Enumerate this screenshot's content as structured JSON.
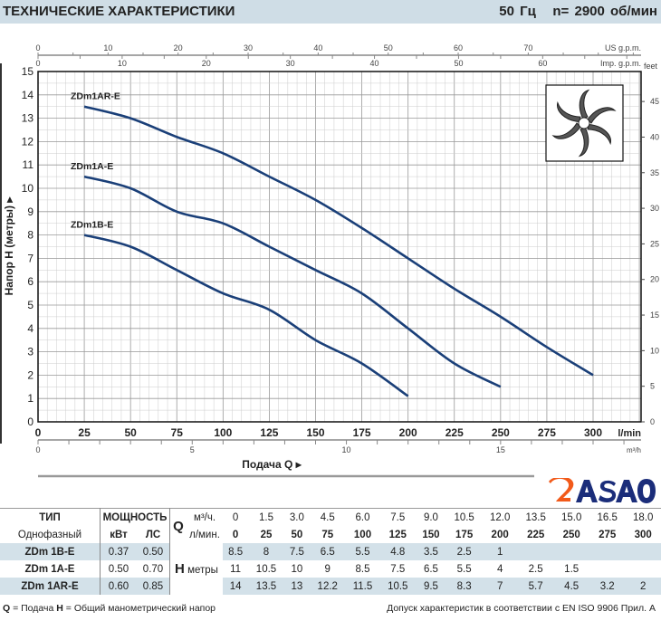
{
  "header": {
    "title": "ТЕХНИЧЕСКИЕ ХАРАКТЕРИСТИКИ",
    "freq": "50 Гц",
    "speed": "n= 2900 об/мин"
  },
  "chart_data": {
    "type": "line",
    "xlabel": "Подача Q",
    "ylabel": "Напор H (метры)",
    "x_unit": "l/min",
    "y2_unit": "feet",
    "x2_unit": "m³/h",
    "top1_unit": "US g.p.m.",
    "top2_unit": "Imp. g.p.m.",
    "xlim": [
      0,
      326
    ],
    "ylim": [
      0,
      15
    ],
    "x_ticks": [
      0,
      25,
      50,
      75,
      100,
      125,
      150,
      175,
      200,
      225,
      250,
      275,
      300
    ],
    "y_ticks": [
      0,
      1,
      2,
      3,
      4,
      5,
      6,
      7,
      8,
      9,
      10,
      11,
      12,
      13,
      14,
      15
    ],
    "feet_ticks": [
      0,
      5,
      10,
      15,
      20,
      25,
      30,
      35,
      40,
      45
    ],
    "m3h_ticks": [
      0,
      5,
      10,
      15
    ],
    "usgpm_ticks": [
      0,
      10,
      20,
      30,
      40,
      50,
      60,
      70
    ],
    "impgpm_ticks": [
      0,
      10,
      20,
      30,
      40,
      50,
      60
    ],
    "grid": true,
    "series": [
      {
        "name": "ZDm1AR-E",
        "x": [
          25,
          50,
          75,
          100,
          125,
          150,
          175,
          200,
          225,
          250,
          275,
          300
        ],
        "y": [
          13.5,
          13,
          12.2,
          11.5,
          10.5,
          9.5,
          8.3,
          7,
          5.7,
          4.5,
          3.2,
          2
        ]
      },
      {
        "name": "ZDm1A-E",
        "x": [
          25,
          50,
          75,
          100,
          125,
          150,
          175,
          200,
          225,
          250
        ],
        "y": [
          10.5,
          10,
          9,
          8.5,
          7.5,
          6.5,
          5.5,
          4,
          2.5,
          1.5
        ]
      },
      {
        "name": "ZDm1B-E",
        "x": [
          25,
          50,
          75,
          100,
          125,
          150,
          175,
          200
        ],
        "y": [
          8,
          7.5,
          6.5,
          5.5,
          4.8,
          3.5,
          2.5,
          1.1
        ]
      }
    ],
    "color": "#1a3f78"
  },
  "table": {
    "h_type": "ТИП",
    "h_power": "МОЩНОСТЬ",
    "h_q": "Q",
    "h_m3": "м³/ч.",
    "h_lmin": "л/мин.",
    "sub_type": "Однофазный",
    "kw": "кВт",
    "hp": "ЛС",
    "h_label": "H",
    "h_unit": "метры",
    "m3h": [
      "0",
      "1.5",
      "3.0",
      "4.5",
      "6.0",
      "7.5",
      "9.0",
      "10.5",
      "12.0",
      "13.5",
      "15.0",
      "16.5",
      "18.0"
    ],
    "lmin": [
      "0",
      "25",
      "50",
      "75",
      "100",
      "125",
      "150",
      "175",
      "200",
      "225",
      "250",
      "275",
      "300"
    ],
    "rows": [
      {
        "model": "ZDm 1B-E",
        "kw": "0.37",
        "hp": "0.50",
        "h": [
          "8.5",
          "8",
          "7.5",
          "6.5",
          "5.5",
          "4.8",
          "3.5",
          "2.5",
          "1",
          "",
          "",
          "",
          ""
        ]
      },
      {
        "model": "ZDm 1A-E",
        "kw": "0.50",
        "hp": "0.70",
        "h": [
          "11",
          "10.5",
          "10",
          "9",
          "8.5",
          "7.5",
          "6.5",
          "5.5",
          "4",
          "2.5",
          "1.5",
          "",
          ""
        ]
      },
      {
        "model": "ZDm 1AR-E",
        "kw": "0.60",
        "hp": "0.85",
        "h": [
          "14",
          "13.5",
          "13",
          "12.2",
          "11.5",
          "10.5",
          "9.5",
          "8.3",
          "7",
          "5.7",
          "4.5",
          "3.2",
          "2"
        ]
      }
    ]
  },
  "footer": {
    "left_q": "Q",
    "left_q_text": " = Подача  ",
    "left_h": "H",
    "left_h_text": " = Общий манометрический напор",
    "right": "Допуск характеристик в соответствии с EN ISO 9906 Прил. A"
  },
  "logo": {
    "text": "ASAO"
  }
}
